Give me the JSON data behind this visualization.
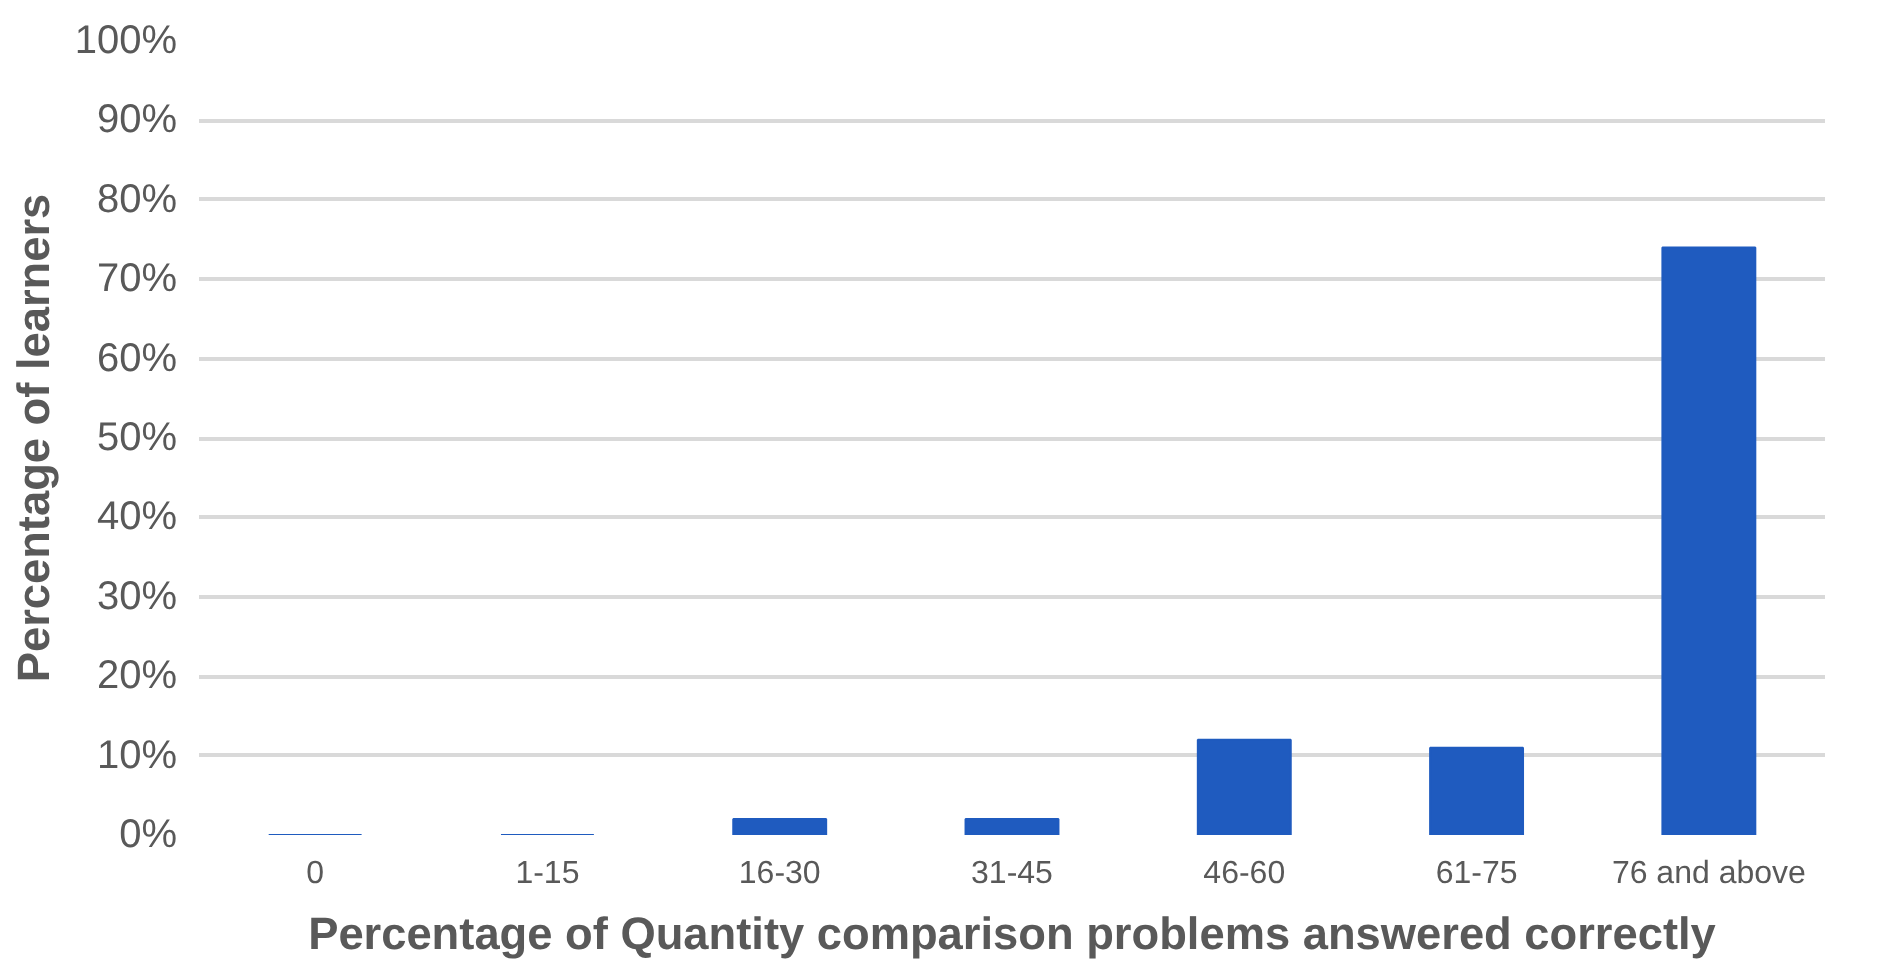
{
  "chart_data": {
    "type": "bar",
    "xlabel": "Percentage of Quantity comparison problems answered correctly",
    "ylabel": "Percentage of learners",
    "categories": [
      "0",
      "1-15",
      "16-30",
      "31-45",
      "46-60",
      "61-75",
      "76 and above"
    ],
    "values": [
      0,
      0,
      2,
      2,
      12,
      11,
      74
    ],
    "color": "#1f5bbf",
    "ylim": [
      0,
      100
    ],
    "yticks": [
      {
        "value": 0,
        "label": "0%"
      },
      {
        "value": 10,
        "label": "10%"
      },
      {
        "value": 20,
        "label": "20%"
      },
      {
        "value": 30,
        "label": "30%"
      },
      {
        "value": 40,
        "label": "40%"
      },
      {
        "value": 50,
        "label": "50%"
      },
      {
        "value": 60,
        "label": "60%"
      },
      {
        "value": 70,
        "label": "70%"
      },
      {
        "value": 80,
        "label": "80%"
      },
      {
        "value": 90,
        "label": "90%"
      },
      {
        "value": 100,
        "label": "100%"
      }
    ],
    "grid": "y"
  }
}
